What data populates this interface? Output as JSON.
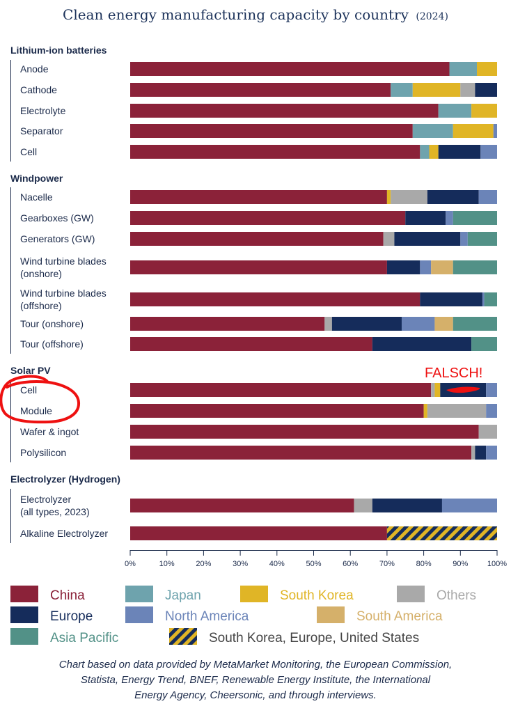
{
  "chart_data": {
    "type": "bar",
    "orientation": "horizontal",
    "stacked": true,
    "title": "Clean energy manufacturing capacity by country",
    "subtitle": "(2024)",
    "xlim": [
      0,
      100
    ],
    "x_ticks": [
      "0%",
      "10%",
      "20%",
      "30%",
      "40%",
      "50%",
      "60%",
      "70%",
      "80%",
      "90%",
      "100%"
    ],
    "legend_position": "bottom",
    "series": [
      {
        "name": "China",
        "color": "#8b2239"
      },
      {
        "name": "Japan",
        "color": "#6ea3ad"
      },
      {
        "name": "South Korea",
        "color": "#e0b526"
      },
      {
        "name": "Others",
        "color": "#a9a9a9"
      },
      {
        "name": "Europe",
        "color": "#152c5b"
      },
      {
        "name": "North America",
        "color": "#6b84b8"
      },
      {
        "name": "South America",
        "color": "#d5b06a"
      },
      {
        "name": "Asia Pacific",
        "color": "#529187"
      },
      {
        "name": "South Korea, Europe, United States",
        "color": "#152c5b",
        "color2": "#e0b526",
        "pattern": "diagonal-stripes"
      }
    ],
    "groups": [
      {
        "title": "Lithium-ion batteries",
        "rows": [
          {
            "label": [
              "Anode"
            ],
            "segments": [
              [
                "China",
                87
              ],
              [
                "Japan",
                7.5
              ],
              [
                "South Korea",
                5.5
              ]
            ]
          },
          {
            "label": [
              "Cathode"
            ],
            "segments": [
              [
                "China",
                71
              ],
              [
                "Japan",
                6
              ],
              [
                "South Korea",
                13
              ],
              [
                "Others",
                4
              ],
              [
                "Europe",
                6
              ]
            ]
          },
          {
            "label": [
              "Electrolyte"
            ],
            "segments": [
              [
                "China",
                84
              ],
              [
                "Japan",
                9
              ],
              [
                "South Korea",
                7
              ]
            ]
          },
          {
            "label": [
              "Separator"
            ],
            "segments": [
              [
                "China",
                77
              ],
              [
                "Japan",
                11
              ],
              [
                "South Korea",
                11
              ],
              [
                "North America",
                1
              ]
            ]
          },
          {
            "label": [
              "Cell"
            ],
            "segments": [
              [
                "China",
                79
              ],
              [
                "Japan",
                2.5
              ],
              [
                "South Korea",
                2.5
              ],
              [
                "Europe",
                11.5
              ],
              [
                "North America",
                4.5
              ]
            ]
          }
        ]
      },
      {
        "title": "Windpower",
        "rows": [
          {
            "label": [
              "Nacelle"
            ],
            "segments": [
              [
                "China",
                70
              ],
              [
                "South Korea",
                1
              ],
              [
                "Others",
                10
              ],
              [
                "Europe",
                14
              ],
              [
                "North America",
                5
              ]
            ]
          },
          {
            "label": [
              "Gearboxes (GW)"
            ],
            "segments": [
              [
                "China",
                75
              ],
              [
                "Europe",
                11
              ],
              [
                "North America",
                2
              ],
              [
                "Asia Pacific",
                12
              ]
            ]
          },
          {
            "label": [
              "Generators (GW)"
            ],
            "segments": [
              [
                "China",
                69
              ],
              [
                "Others",
                3
              ],
              [
                "Europe",
                18
              ],
              [
                "North America",
                2
              ],
              [
                "Asia Pacific",
                8
              ]
            ]
          },
          {
            "label": [
              "Wind turbine blades",
              "(onshore)"
            ],
            "segments": [
              [
                "China",
                70
              ],
              [
                "Europe",
                9
              ],
              [
                "North America",
                3
              ],
              [
                "South America",
                6
              ],
              [
                "Asia Pacific",
                12
              ]
            ]
          },
          {
            "label": [
              "Wind turbine blades",
              "(offshore)"
            ],
            "segments": [
              [
                "China",
                79
              ],
              [
                "Europe",
                17
              ],
              [
                "North America",
                0.5
              ],
              [
                "Asia Pacific",
                3.5
              ]
            ]
          },
          {
            "label": [
              "Tour (onshore)"
            ],
            "segments": [
              [
                "China",
                53
              ],
              [
                "Others",
                2
              ],
              [
                "Europe",
                19
              ],
              [
                "North America",
                9
              ],
              [
                "South America",
                5
              ],
              [
                "Asia Pacific",
                12
              ]
            ]
          },
          {
            "label": [
              "Tour (offshore)"
            ],
            "segments": [
              [
                "China",
                66
              ],
              [
                "Europe",
                27
              ],
              [
                "Asia Pacific",
                7
              ]
            ]
          }
        ]
      },
      {
        "title": "Solar PV",
        "rows": [
          {
            "label": [
              "Cell"
            ],
            "segments": [
              [
                "China",
                82
              ],
              [
                "Others",
                1
              ],
              [
                "South Korea",
                1.5
              ],
              [
                "Europe",
                12.5
              ],
              [
                "North America",
                3
              ]
            ]
          },
          {
            "label": [
              "Module"
            ],
            "segments": [
              [
                "China",
                80
              ],
              [
                "South Korea",
                1
              ],
              [
                "Others",
                16
              ],
              [
                "North America",
                3
              ]
            ]
          },
          {
            "label": [
              "Wafer & ingot"
            ],
            "segments": [
              [
                "China",
                95
              ],
              [
                "Others",
                5
              ]
            ]
          },
          {
            "label": [
              "Polysilicon"
            ],
            "segments": [
              [
                "China",
                93
              ],
              [
                "Others",
                1
              ],
              [
                "Europe",
                3
              ],
              [
                "North America",
                3
              ]
            ]
          }
        ]
      },
      {
        "title": "Electrolyzer (Hydrogen)",
        "rows": [
          {
            "label": [
              "Electrolyzer",
              "(all types, 2023)"
            ],
            "segments": [
              [
                "China",
                61
              ],
              [
                "Others",
                5
              ],
              [
                "Europe",
                19
              ],
              [
                "North America",
                15
              ]
            ]
          },
          {
            "label": [
              "Alkaline Electrolyzer"
            ],
            "segments": [
              [
                "China",
                70
              ],
              [
                "South Korea, Europe, United States",
                30
              ]
            ]
          }
        ]
      }
    ],
    "annotations": [
      {
        "text": "FALSCH!",
        "color": "#ee1111"
      }
    ]
  },
  "footnote": {
    "lines": [
      "Chart based on data provided by MetaMarket Monitoring, the European Commission,",
      "Statista, Energy Trend, BNEF, Renewable Energy Institute, the International",
      "Energy Agency, Cheersonic, and through interviews."
    ]
  }
}
